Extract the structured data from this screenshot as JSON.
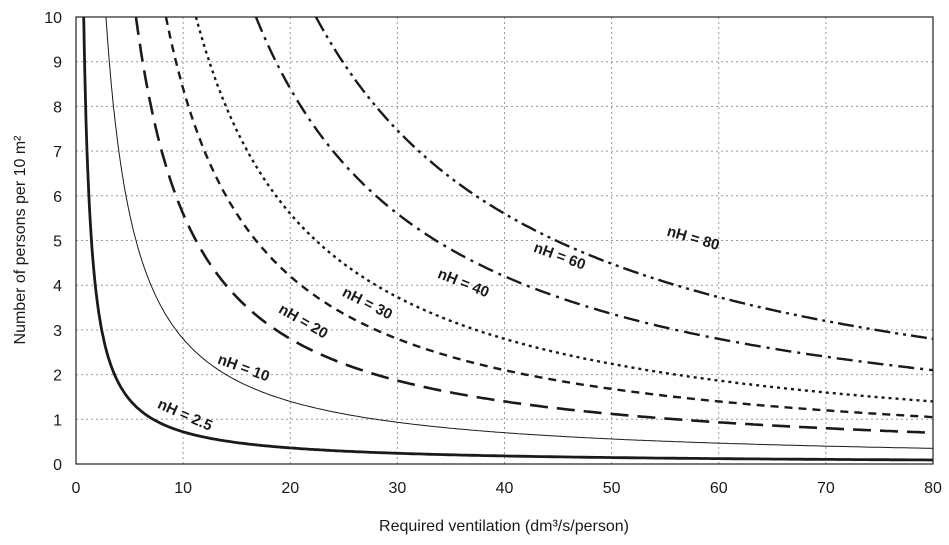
{
  "chart_data": {
    "type": "line",
    "title": "",
    "xlabel": "Required ventilation (dm³/s/person)",
    "ylabel": "Number of persons per 10 m²",
    "xlim": [
      0,
      80
    ],
    "ylim": [
      0,
      10
    ],
    "xticks": [
      0,
      10,
      20,
      30,
      40,
      50,
      60,
      70,
      80
    ],
    "yticks": [
      0,
      1,
      2,
      3,
      4,
      5,
      6,
      7,
      8,
      9,
      10
    ],
    "grid": true,
    "grid_style": "dotted",
    "legend": "none",
    "series": [
      {
        "name": "nH = 2.5",
        "x": [
          1,
          2,
          4,
          6,
          8,
          10,
          20,
          30,
          40,
          60,
          80
        ],
        "y": [
          7.0,
          3.5,
          1.75,
          1.17,
          0.88,
          0.7,
          0.35,
          0.23,
          0.18,
          0.12,
          0.09
        ],
        "style": "solid-thick"
      },
      {
        "name": "nH = 10",
        "x": [
          3,
          5,
          10,
          15,
          20,
          30,
          40,
          60,
          80
        ],
        "y": [
          9.3,
          5.6,
          2.8,
          1.87,
          1.4,
          0.93,
          0.7,
          0.47,
          0.35
        ],
        "style": "solid-thin"
      },
      {
        "name": "nH = 20",
        "x": [
          8,
          10,
          15,
          20,
          30,
          40,
          60,
          80
        ],
        "y": [
          7.0,
          5.6,
          3.73,
          2.8,
          1.87,
          1.4,
          0.93,
          0.7
        ],
        "style": "long-dash"
      },
      {
        "name": "nH = 30",
        "x": [
          10,
          15,
          20,
          30,
          40,
          60,
          80
        ],
        "y": [
          8.4,
          5.6,
          4.2,
          2.8,
          2.1,
          1.4,
          1.05
        ],
        "style": "short-dash"
      },
      {
        "name": "nH = 40",
        "x": [
          12,
          15,
          20,
          30,
          40,
          60,
          80
        ],
        "y": [
          9.3,
          7.47,
          5.6,
          3.73,
          2.8,
          1.87,
          1.4
        ],
        "style": "dotted"
      },
      {
        "name": "nH = 60",
        "x": [
          17,
          20,
          30,
          40,
          60,
          80
        ],
        "y": [
          9.9,
          8.4,
          5.6,
          4.2,
          2.8,
          2.1
        ],
        "style": "dash-dot"
      },
      {
        "name": "nH = 80",
        "x": [
          23,
          30,
          40,
          60,
          80
        ],
        "y": [
          9.7,
          7.47,
          5.6,
          3.73,
          2.8
        ],
        "style": "dash-dot-dot"
      }
    ],
    "annotations": [
      {
        "text": "nH = 2.5",
        "x": 10,
        "y": 1.0
      },
      {
        "text": "nH = 10",
        "x": 15.5,
        "y": 2.05
      },
      {
        "text": "nH = 20",
        "x": 21,
        "y": 3.1
      },
      {
        "text": "nH = 30",
        "x": 27,
        "y": 3.5
      },
      {
        "text": "nH = 40",
        "x": 36,
        "y": 3.95
      },
      {
        "text": "nH = 60",
        "x": 45,
        "y": 4.55
      },
      {
        "text": "nH = 80",
        "x": 57.5,
        "y": 4.95
      }
    ]
  }
}
